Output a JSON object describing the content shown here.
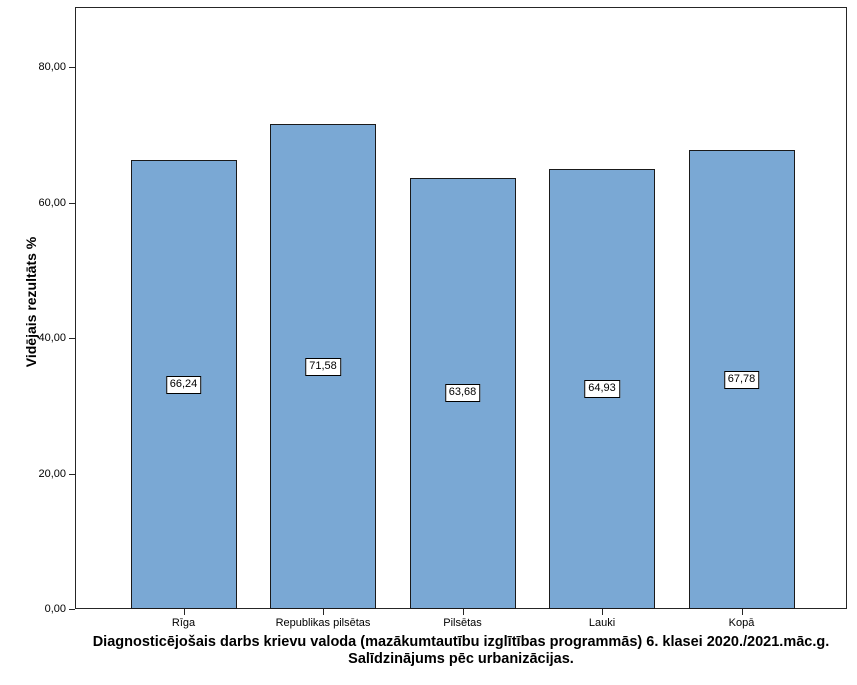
{
  "chart_data": {
    "type": "bar",
    "categories": [
      "Rīga",
      "Republikas pilsētas",
      "Pilsētas",
      "Lauki",
      "Kopā"
    ],
    "values": [
      66.24,
      71.58,
      63.68,
      64.93,
      67.78
    ],
    "value_labels": [
      "66,24",
      "71,58",
      "63,68",
      "64,93",
      "67,78"
    ],
    "title": "Diagnosticējošais darbs krievu valoda (mazākumtautību izglītības programmās) 6. klasei 2020./2021.māc.g.",
    "subtitle": "Salīdzinājums pēc urbanizācijas.",
    "xlabel": "",
    "ylabel": "Vidējais rezultāts %",
    "ylim": [
      0,
      88.9
    ],
    "yticks": [
      0,
      20,
      40,
      60,
      80
    ],
    "ytick_labels": [
      "0,00",
      "20,00",
      "40,00",
      "60,00",
      "80,00"
    ],
    "grid": false,
    "legend": "none",
    "bar_color": "#7AA8D4",
    "bar_border_color": "#1a1a1a",
    "axis_color": "#262626"
  }
}
